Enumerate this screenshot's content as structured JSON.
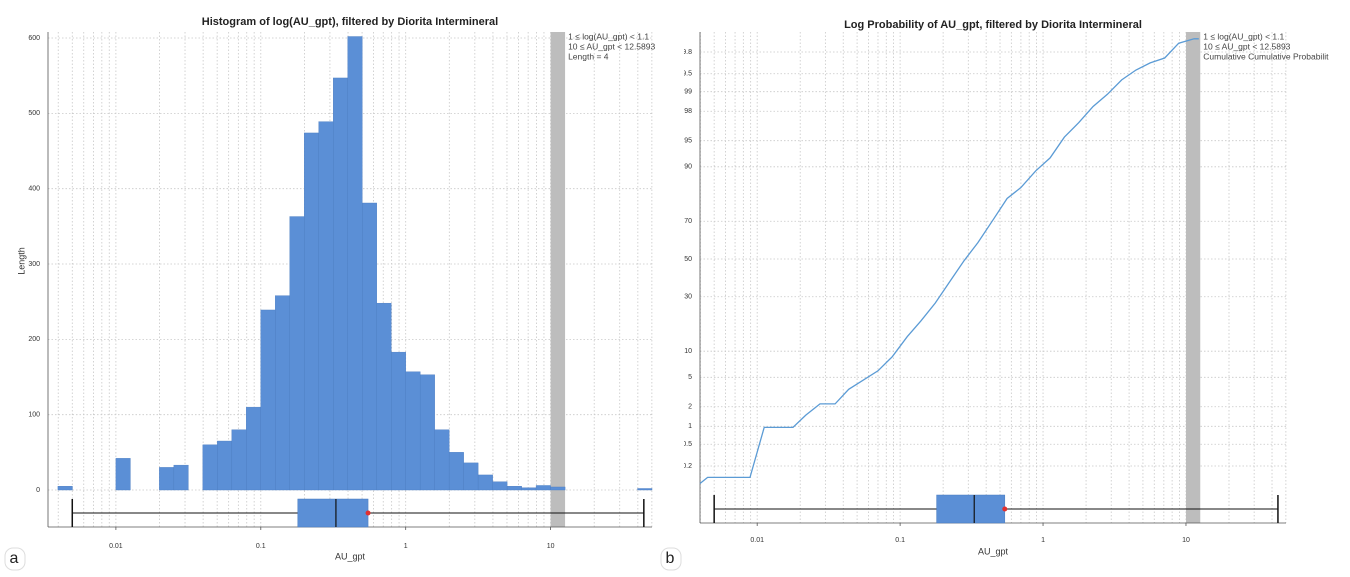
{
  "chart_data": [
    {
      "type": "histogram",
      "title": "Histogram of log(AU_gpt), filtered by Diorita Intermineral",
      "xlabel": "AU_gpt",
      "ylabel": "Length",
      "xscale": "log",
      "bins": [
        0.003981,
        0.005012,
        0.00631,
        0.007943,
        0.01,
        0.012589,
        0.015849,
        0.019953,
        0.025119,
        0.031623,
        0.039811,
        0.050119,
        0.063096,
        0.079433,
        0.1,
        0.125893,
        0.158489,
        0.199526,
        0.251189,
        0.316228,
        0.398107,
        0.501187,
        0.630957,
        0.794328,
        1,
        1.258925,
        1.584893,
        1.995262,
        2.511886,
        3.162278,
        3.981072,
        5.011872,
        6.309573,
        7.943282,
        10,
        12.589254,
        15.848932,
        19.952623,
        25.118864,
        31.622777,
        39.810717,
        50.118723
      ],
      "values": [
        5,
        0,
        0,
        0,
        42,
        0,
        0,
        30,
        33,
        0,
        60,
        65,
        80,
        110,
        239,
        258,
        363,
        474,
        489,
        547,
        602,
        381,
        248,
        183,
        157,
        153,
        80,
        50,
        36,
        20,
        11,
        5,
        3,
        6,
        4,
        0,
        0,
        0,
        0,
        0,
        2
      ],
      "color": "#5b8fd6",
      "xlim": [
        0.0034,
        50.1
      ],
      "ylim": [
        0,
        608
      ],
      "xticks": [
        0.01,
        0.1,
        1,
        10
      ],
      "xminor": [
        0.004,
        0.005,
        0.006,
        0.007,
        0.008,
        0.009,
        0.02,
        0.03,
        0.04,
        0.05,
        0.06,
        0.07,
        0.08,
        0.09,
        0.2,
        0.3,
        0.4,
        0.5,
        0.6,
        0.7,
        0.8,
        0.9,
        2,
        3,
        4,
        5,
        6,
        7,
        8,
        9,
        20,
        30,
        40,
        50
      ],
      "yticks": [
        0,
        100,
        200,
        300,
        400,
        500,
        600
      ],
      "grid": true,
      "highlight": [
        10,
        12.5893
      ],
      "highlight_color": "#bdbdbd",
      "annotation": [
        "1 ≤ log(AU_gpt) < 1.1",
        "10 ≤ AU_gpt < 12.5893",
        "Length = 4"
      ],
      "boxplot": {
        "min": 0.005,
        "q1": 0.18,
        "median": 0.33,
        "q3": 0.55,
        "max": 44,
        "mean": 0.55,
        "color": "#5b8fd6",
        "mean_color": "#e03030"
      },
      "panel_label": "a"
    },
    {
      "type": "line",
      "title": "Log Probability of AU_gpt, filtered by Diorita Intermineral",
      "xlabel": "AU_gpt",
      "xscale": "log",
      "yscale": "probability",
      "x": [
        0.00398,
        0.0045,
        0.0089,
        0.0112,
        0.0178,
        0.0219,
        0.0275,
        0.0351,
        0.0437,
        0.07,
        0.088,
        0.112,
        0.14,
        0.176,
        0.224,
        0.28,
        0.35,
        0.45,
        0.56,
        0.7,
        0.89,
        1.12,
        1.41,
        1.78,
        2.24,
        2.82,
        3.55,
        4.47,
        5.62,
        7.1,
        8.9,
        11.4,
        12.3
      ],
      "values": [
        0.09,
        0.12,
        0.12,
        0.96,
        0.96,
        1.5,
        2.2,
        2.2,
        3.5,
        6,
        8.7,
        14,
        19.5,
        27,
        38,
        49,
        59,
        71,
        80,
        84,
        89,
        92,
        95.5,
        97.1,
        98.3,
        98.9,
        99.36,
        99.57,
        99.68,
        99.74,
        99.865,
        99.89,
        99.89
      ],
      "color": "#5b9bd5",
      "xlim": [
        0.00398,
        50.1
      ],
      "ylim": [
        0.08,
        99.92
      ],
      "xticks": [
        0.01,
        0.1,
        1,
        10
      ],
      "xminor": [
        0.004,
        0.005,
        0.006,
        0.007,
        0.008,
        0.009,
        0.02,
        0.03,
        0.04,
        0.05,
        0.06,
        0.07,
        0.08,
        0.09,
        0.2,
        0.3,
        0.4,
        0.5,
        0.6,
        0.7,
        0.8,
        0.9,
        2,
        3,
        4,
        5,
        6,
        7,
        8,
        9,
        20,
        30,
        40,
        50
      ],
      "yticks": [
        0.2,
        0.5,
        1,
        2,
        5,
        10,
        30,
        50,
        70,
        90,
        95,
        98,
        99,
        99.5,
        99.8
      ],
      "grid": true,
      "highlight": [
        10,
        12.5893
      ],
      "highlight_color": "#bdbdbd",
      "annotation": [
        "1 ≤ log(AU_gpt) < 1.1",
        "10 ≤ AU_gpt < 12.5893",
        "Cumulative Cumulative Probabilit"
      ],
      "boxplot": {
        "min": 0.005,
        "q1": 0.18,
        "median": 0.33,
        "q3": 0.54,
        "max": 44,
        "mean": 0.54,
        "color": "#5b8fd6",
        "mean_color": "#e03030"
      },
      "panel_label": "b"
    }
  ]
}
